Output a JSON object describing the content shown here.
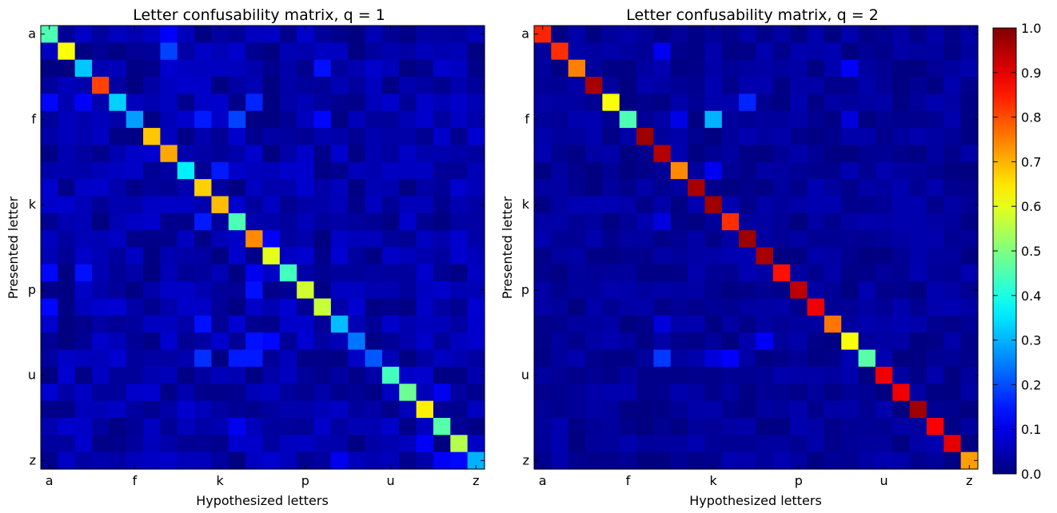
{
  "chart_data": [
    {
      "type": "heatmap",
      "title": "Letter confusability matrix, q = 1",
      "xlabel": "Hypothesized letters",
      "ylabel": "Presented letter",
      "xtick_labels": [
        "a",
        "f",
        "k",
        "p",
        "u",
        "z"
      ],
      "ytick_labels": [
        "a",
        "f",
        "k",
        "p",
        "u",
        "z"
      ],
      "rows": [
        "a",
        "b",
        "c",
        "d",
        "e",
        "f",
        "g",
        "h",
        "i",
        "j",
        "k",
        "l",
        "m",
        "n",
        "o",
        "p",
        "q",
        "r",
        "s",
        "t",
        "u",
        "v",
        "w",
        "x",
        "y",
        "z"
      ],
      "cols": [
        "a",
        "b",
        "c",
        "d",
        "e",
        "f",
        "g",
        "h",
        "i",
        "j",
        "k",
        "l",
        "m",
        "n",
        "o",
        "p",
        "q",
        "r",
        "s",
        "t",
        "u",
        "v",
        "w",
        "x",
        "y",
        "z"
      ],
      "diagonal": [
        0.45,
        0.62,
        0.32,
        0.81,
        0.33,
        0.28,
        0.68,
        0.71,
        0.36,
        0.67,
        0.69,
        0.45,
        0.74,
        0.6,
        0.44,
        0.58,
        0.57,
        0.31,
        0.24,
        0.21,
        0.44,
        0.48,
        0.64,
        0.46,
        0.55,
        0.3
      ],
      "off_diagonal": [
        {
          "row": "a",
          "col": "h",
          "value": 0.12
        },
        {
          "row": "b",
          "col": "h",
          "value": 0.19
        },
        {
          "row": "c",
          "col": "q",
          "value": 0.14
        },
        {
          "row": "e",
          "col": "a",
          "value": 0.13
        },
        {
          "row": "e",
          "col": "c",
          "value": 0.12
        },
        {
          "row": "e",
          "col": "m",
          "value": 0.16
        },
        {
          "row": "f",
          "col": "j",
          "value": 0.15
        },
        {
          "row": "f",
          "col": "l",
          "value": 0.19
        },
        {
          "row": "f",
          "col": "q",
          "value": 0.13
        },
        {
          "row": "i",
          "col": "k",
          "value": 0.15
        },
        {
          "row": "l",
          "col": "j",
          "value": 0.15
        },
        {
          "row": "m",
          "col": "n",
          "value": 0.12
        },
        {
          "row": "o",
          "col": "a",
          "value": 0.13
        },
        {
          "row": "o",
          "col": "c",
          "value": 0.14
        },
        {
          "row": "o",
          "col": "m",
          "value": 0.11
        },
        {
          "row": "p",
          "col": "m",
          "value": 0.14
        },
        {
          "row": "q",
          "col": "a",
          "value": 0.13
        },
        {
          "row": "r",
          "col": "j",
          "value": 0.14
        },
        {
          "row": "s",
          "col": "m",
          "value": 0.14
        },
        {
          "row": "s",
          "col": "n",
          "value": 0.13
        },
        {
          "row": "t",
          "col": "j",
          "value": 0.17
        },
        {
          "row": "t",
          "col": "l",
          "value": 0.15
        },
        {
          "row": "t",
          "col": "m",
          "value": 0.15
        },
        {
          "row": "v",
          "col": "x",
          "value": 0.11
        },
        {
          "row": "x",
          "col": "l",
          "value": 0.11
        },
        {
          "row": "y",
          "col": "w",
          "value": 0.12
        },
        {
          "row": "z",
          "col": "r",
          "value": 0.11
        },
        {
          "row": "z",
          "col": "x",
          "value": 0.12
        },
        {
          "row": "z",
          "col": "y",
          "value": 0.13
        }
      ],
      "background_range": [
        0.0,
        0.08
      ],
      "grid": false
    },
    {
      "type": "heatmap",
      "title": "Letter confusability matrix, q = 2",
      "xlabel": "Hypothesized letters",
      "ylabel": "Presented letter",
      "xtick_labels": [
        "a",
        "f",
        "k",
        "p",
        "u",
        "z"
      ],
      "ytick_labels": [
        "a",
        "f",
        "k",
        "p",
        "u",
        "z"
      ],
      "rows": [
        "a",
        "b",
        "c",
        "d",
        "e",
        "f",
        "g",
        "h",
        "i",
        "j",
        "k",
        "l",
        "m",
        "n",
        "o",
        "p",
        "q",
        "r",
        "s",
        "t",
        "u",
        "v",
        "w",
        "x",
        "y",
        "z"
      ],
      "cols": [
        "a",
        "b",
        "c",
        "d",
        "e",
        "f",
        "g",
        "h",
        "i",
        "j",
        "k",
        "l",
        "m",
        "n",
        "o",
        "p",
        "q",
        "r",
        "s",
        "t",
        "u",
        "v",
        "w",
        "x",
        "y",
        "z"
      ],
      "diagonal": [
        0.84,
        0.83,
        0.75,
        0.96,
        0.62,
        0.45,
        0.97,
        0.95,
        0.74,
        0.96,
        0.97,
        0.83,
        0.97,
        0.96,
        0.86,
        0.94,
        0.89,
        0.76,
        0.62,
        0.46,
        0.89,
        0.89,
        0.97,
        0.88,
        0.9,
        0.72
      ],
      "off_diagonal": [
        {
          "row": "b",
          "col": "h",
          "value": 0.11
        },
        {
          "row": "c",
          "col": "s",
          "value": 0.12
        },
        {
          "row": "e",
          "col": "m",
          "value": 0.16
        },
        {
          "row": "f",
          "col": "i",
          "value": 0.1
        },
        {
          "row": "f",
          "col": "k",
          "value": 0.3
        },
        {
          "row": "f",
          "col": "s",
          "value": 0.09
        },
        {
          "row": "i",
          "col": "k",
          "value": 0.11
        },
        {
          "row": "l",
          "col": "h",
          "value": 0.09
        },
        {
          "row": "r",
          "col": "h",
          "value": 0.09
        },
        {
          "row": "s",
          "col": "n",
          "value": 0.12
        },
        {
          "row": "t",
          "col": "h",
          "value": 0.18
        },
        {
          "row": "t",
          "col": "k",
          "value": 0.09
        },
        {
          "row": "t",
          "col": "l",
          "value": 0.12
        }
      ],
      "background_range": [
        0.0,
        0.05
      ],
      "grid": false
    }
  ],
  "colorbar": {
    "colormap": "jet",
    "range": [
      0.0,
      1.0
    ],
    "tick_labels": [
      "0.0",
      "0.1",
      "0.2",
      "0.3",
      "0.4",
      "0.5",
      "0.6",
      "0.7",
      "0.8",
      "0.9",
      "1.0"
    ]
  }
}
